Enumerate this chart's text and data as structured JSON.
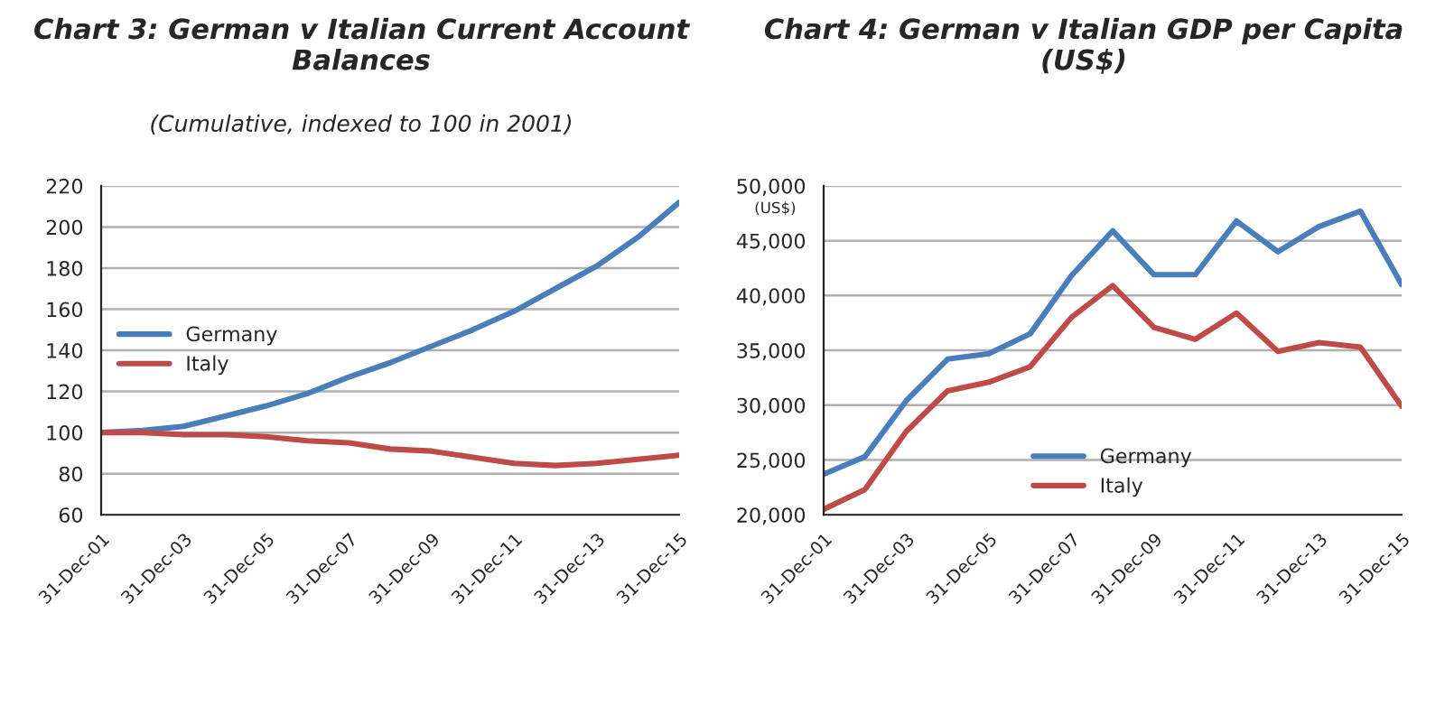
{
  "chart_data": [
    {
      "type": "line",
      "title": "Chart 3: German v Italian Current Account Balances",
      "subtitle": "(Cumulative, indexed to 100 in 2001)",
      "x": [
        "2001-12-31",
        "2002-12-31",
        "2003-12-31",
        "2004-12-31",
        "2005-12-31",
        "2006-12-31",
        "2007-12-31",
        "2008-12-31",
        "2009-12-31",
        "2010-12-31",
        "2011-12-31",
        "2012-12-31",
        "2013-12-31",
        "2014-12-31",
        "2015-12-31"
      ],
      "series": [
        {
          "name": "Germany",
          "color": "#4a7ebb",
          "values": [
            100,
            101,
            103,
            108,
            113,
            119,
            127,
            134,
            142,
            150,
            159,
            170,
            181,
            195,
            212
          ]
        },
        {
          "name": "Italy",
          "color": "#be4b48",
          "values": [
            100,
            100,
            99,
            99,
            98,
            96,
            95,
            92,
            91,
            88,
            85,
            84,
            85,
            87,
            89
          ]
        }
      ],
      "xlim": [
        "2001-12-31",
        "2015-12-31"
      ],
      "xticks": [
        {
          "value": "2001-12-31",
          "label": "31-Dec-01"
        },
        {
          "value": "2003-12-31",
          "label": "31-Dec-03"
        },
        {
          "value": "2005-12-31",
          "label": "31-Dec-05"
        },
        {
          "value": "2007-12-31",
          "label": "31-Dec-07"
        },
        {
          "value": "2009-12-31",
          "label": "31-Dec-09"
        },
        {
          "value": "2011-12-31",
          "label": "31-Dec-11"
        },
        {
          "value": "2013-12-31",
          "label": "31-Dec-13"
        },
        {
          "value": "2015-12-31",
          "label": "31-Dec-15"
        }
      ],
      "ylim": [
        60,
        220
      ],
      "yticks": [
        60,
        80,
        100,
        120,
        140,
        160,
        180,
        200,
        220
      ],
      "grid": "y",
      "legend": "center left",
      "marker": "none",
      "line_style": "solid"
    },
    {
      "type": "line",
      "title": "Chart 4: German v Italian GDP per Capita (US$)",
      "ylabel": "(US$)",
      "x": [
        "2001-12-31",
        "2002-12-31",
        "2003-12-31",
        "2004-12-31",
        "2005-12-31",
        "2006-12-31",
        "2007-12-31",
        "2008-12-31",
        "2009-12-31",
        "2010-12-31",
        "2011-12-31",
        "2012-12-31",
        "2013-12-31",
        "2014-12-31",
        "2015-12-31"
      ],
      "series": [
        {
          "name": "Germany",
          "color": "#4a7ebb",
          "values": [
            23700,
            25300,
            30400,
            34200,
            34700,
            36500,
            41800,
            45900,
            41900,
            41900,
            46800,
            44000,
            46300,
            47700,
            41000
          ]
        },
        {
          "name": "Italy",
          "color": "#be4b48",
          "values": [
            20500,
            22300,
            27600,
            31300,
            32100,
            33500,
            38000,
            40900,
            37100,
            36000,
            38400,
            34900,
            35700,
            35300,
            29900
          ]
        }
      ],
      "xlim": [
        "2001-12-31",
        "2015-12-31"
      ],
      "xticks": [
        {
          "value": "2001-12-31",
          "label": "31-Dec-01"
        },
        {
          "value": "2003-12-31",
          "label": "31-Dec-03"
        },
        {
          "value": "2005-12-31",
          "label": "31-Dec-05"
        },
        {
          "value": "2007-12-31",
          "label": "31-Dec-07"
        },
        {
          "value": "2009-12-31",
          "label": "31-Dec-09"
        },
        {
          "value": "2011-12-31",
          "label": "31-Dec-11"
        },
        {
          "value": "2013-12-31",
          "label": "31-Dec-13"
        },
        {
          "value": "2015-12-31",
          "label": "31-Dec-15"
        }
      ],
      "ylim": [
        20000,
        50000
      ],
      "yticks": [
        {
          "value": 20000,
          "label": "20,000"
        },
        {
          "value": 25000,
          "label": "25,000"
        },
        {
          "value": 30000,
          "label": "30,000"
        },
        {
          "value": 35000,
          "label": "35,000"
        },
        {
          "value": 40000,
          "label": "40,000"
        },
        {
          "value": 45000,
          "label": "45,000"
        },
        {
          "value": 50000,
          "label": "50,000"
        }
      ],
      "grid": "y",
      "legend": "lower center",
      "marker": "none",
      "line_style": "solid"
    }
  ]
}
